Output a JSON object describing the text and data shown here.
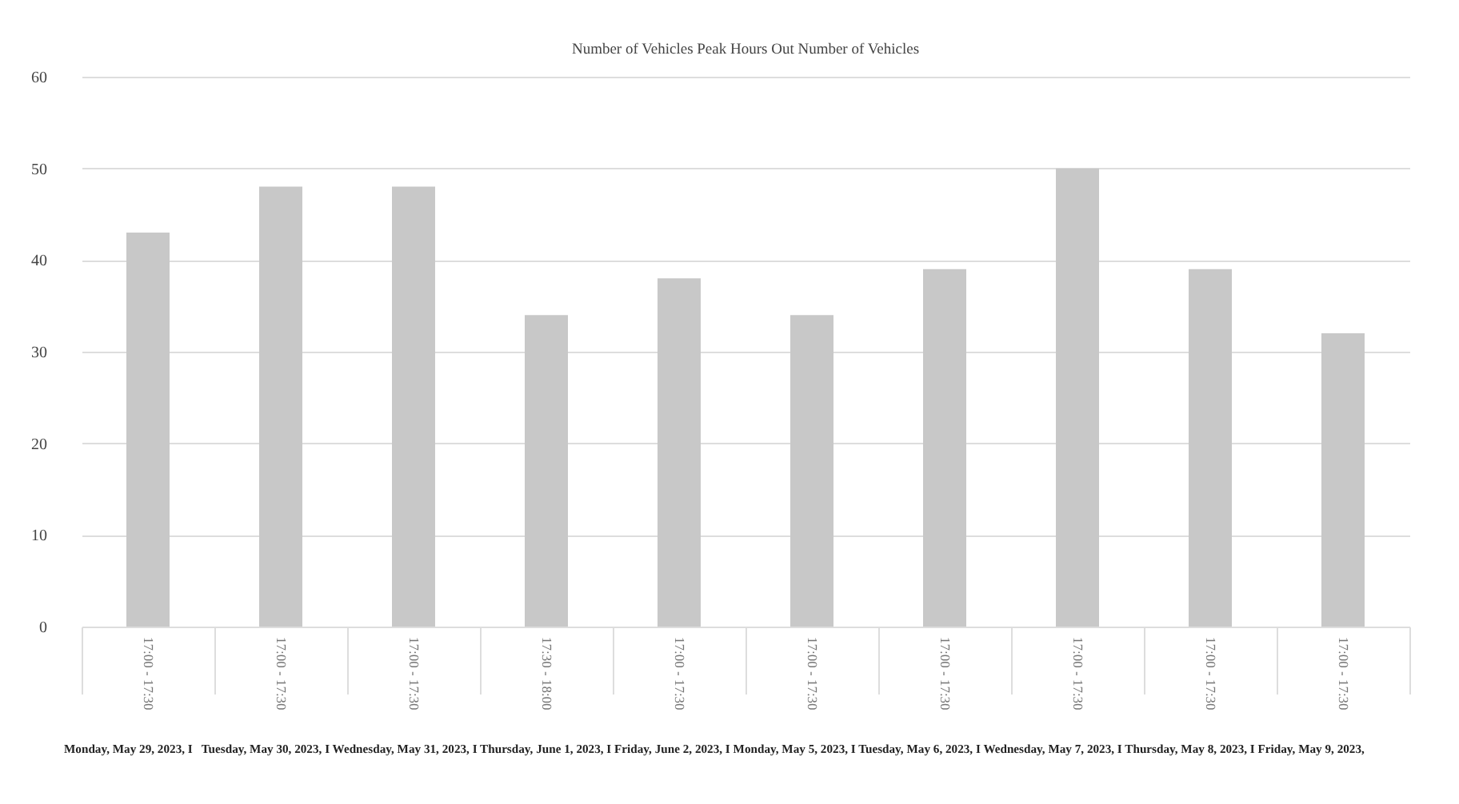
{
  "chart_data": {
    "type": "bar",
    "title": "Number of Vehicles Peak Hours Out Number of Vehicles",
    "categories": [
      "17:00 - 17:30",
      "17:00 - 17:30",
      "17:00 - 17:30",
      "17:30 - 18:00",
      "17:00 - 17:30",
      "17:00 - 17:30",
      "17:00 - 17:30",
      "17:00 - 17:30",
      "17:00 - 17:30",
      "17:00 - 17:30"
    ],
    "values": [
      43,
      48,
      48,
      34,
      38,
      34,
      39,
      50,
      39,
      32
    ],
    "color": "#c8c8c8",
    "ylim": [
      0,
      60
    ],
    "yticks": [
      0,
      10,
      20,
      30,
      40,
      50,
      60
    ],
    "grid": "y",
    "annotations": [
      "Monday, May 29, 2023, I   Tuesday, May 30, 2023, I Wednesday, May 31, 2023, I Thursday, June 1, 2023, I Friday, June 2, 2023, I Monday, May 5, 2023, I Tuesday, May 6, 2023, I Wednesday, May 7, 2023, I Thursday, May 8, 2023, I Friday, May 9, 2023,"
    ]
  }
}
